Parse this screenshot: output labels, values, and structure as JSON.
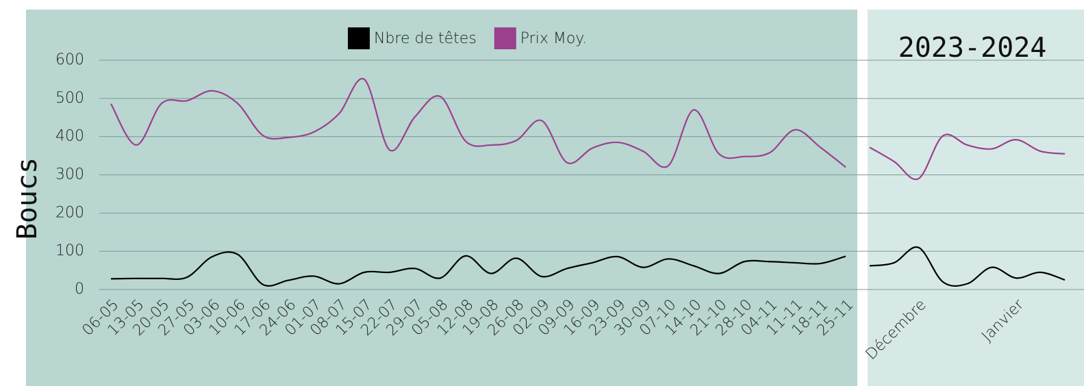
{
  "chart_data": [
    {
      "type": "line",
      "y_label": "Boucs",
      "categories": [
        "06-05",
        "13-05",
        "20-05",
        "27-05",
        "03-06",
        "10-06",
        "17-06",
        "24-06",
        "01-07",
        "08-07",
        "15-07",
        "22-07",
        "29-07",
        "05-08",
        "12-08",
        "19-08",
        "26-08",
        "02-09",
        "09-09",
        "16-09",
        "23-09",
        "30-09",
        "07-10",
        "14-10",
        "21-10",
        "28-10",
        "04-11",
        "11-11",
        "18-11",
        "25-11"
      ],
      "series": [
        {
          "name": "Nbre de têtes",
          "color": "#000000",
          "values": [
            28,
            29,
            29,
            32,
            86,
            92,
            13,
            24,
            35,
            15,
            45,
            45,
            55,
            30,
            88,
            42,
            82,
            34,
            55,
            70,
            86,
            58,
            80,
            62,
            42,
            73,
            73,
            70,
            68,
            87
          ]
        },
        {
          "name": "Prix Moy.",
          "color": "#9b3f8f",
          "values": [
            486,
            378,
            487,
            494,
            520,
            487,
            403,
            398,
            412,
            460,
            550,
            365,
            452,
            505,
            388,
            378,
            390,
            442,
            332,
            370,
            385,
            362,
            324,
            470,
            355,
            348,
            358,
            418,
            372,
            320
          ]
        }
      ],
      "ylim": [
        0,
        600
      ],
      "yticks": [
        0,
        100,
        200,
        300,
        400,
        500,
        600
      ],
      "grid": true,
      "legend": "top"
    },
    {
      "type": "line",
      "title": "2023-2024",
      "categories": [
        null,
        null,
        "Décembre",
        null,
        null,
        null,
        "Janvier",
        null,
        null
      ],
      "series": [
        {
          "name": "Nbre de têtes",
          "color": "#000000",
          "values": [
            62,
            70,
            110,
            20,
            15,
            58,
            30,
            45,
            25
          ]
        },
        {
          "name": "Prix Moy.",
          "color": "#9b3f8f",
          "values": [
            372,
            335,
            290,
            402,
            378,
            368,
            392,
            362,
            355
          ]
        }
      ],
      "ylim": [
        0,
        600
      ]
    }
  ]
}
